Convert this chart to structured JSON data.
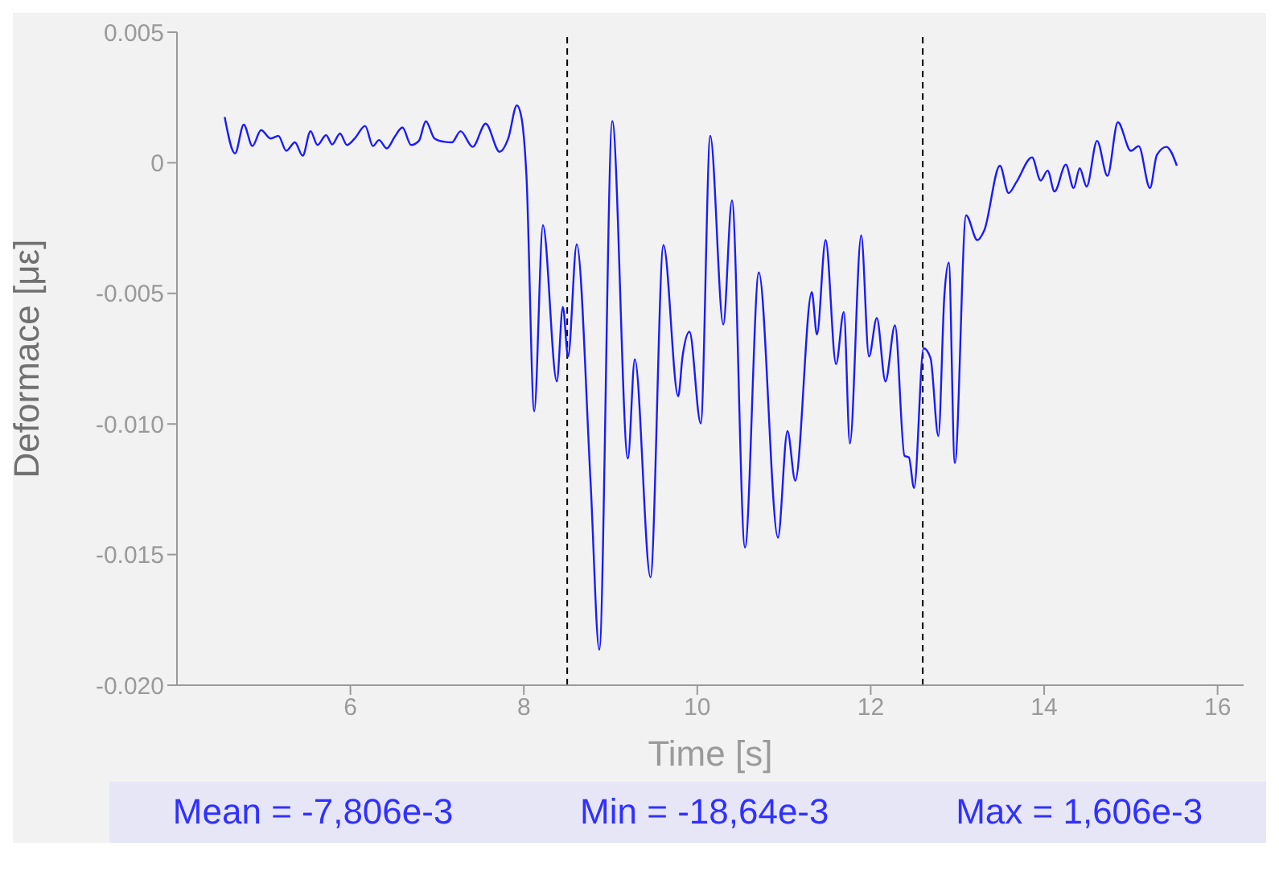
{
  "chart_data": {
    "type": "line",
    "xlabel": "Time [s]",
    "ylabel": "Deformace [με]",
    "x": [
      4.55,
      4.67,
      4.77,
      4.87,
      4.97,
      5.08,
      5.17,
      5.26,
      5.36,
      5.45,
      5.54,
      5.62,
      5.72,
      5.79,
      5.88,
      5.96,
      6.05,
      6.17,
      6.26,
      6.33,
      6.42,
      6.51,
      6.6,
      6.7,
      6.79,
      6.87,
      6.97,
      7.09,
      7.17,
      7.27,
      7.41,
      7.56,
      7.72,
      7.82,
      7.92,
      7.97,
      8.03,
      8.12,
      8.22,
      8.38,
      8.45,
      8.51,
      8.61,
      8.77,
      8.87,
      9.02,
      9.2,
      9.28,
      9.46,
      9.61,
      9.78,
      9.83,
      9.91,
      10.04,
      10.15,
      10.3,
      10.4,
      10.55,
      10.71,
      10.93,
      11.04,
      11.13,
      11.32,
      11.38,
      11.48,
      11.6,
      11.69,
      11.76,
      11.89,
      11.98,
      12.07,
      12.17,
      12.28,
      12.39,
      12.44,
      12.5,
      12.61,
      12.69,
      12.78,
      12.85,
      12.9,
      12.97,
      13.1,
      13.23,
      13.31,
      13.49,
      13.59,
      13.68,
      13.86,
      13.96,
      14.04,
      14.12,
      14.25,
      14.34,
      14.41,
      14.49,
      14.61,
      14.73,
      14.85,
      15.0,
      15.09,
      15.22,
      15.3,
      15.41,
      15.53
    ],
    "values": [
      0.00175,
      0.00036,
      0.00146,
      0.00064,
      0.00125,
      0.00093,
      0.00103,
      0.00046,
      0.00078,
      0.00027,
      0.00121,
      0.00068,
      0.00106,
      0.0007,
      0.00112,
      0.00068,
      0.00093,
      0.00141,
      0.00064,
      0.00087,
      0.00055,
      0.00099,
      0.00135,
      0.00068,
      0.00084,
      0.00159,
      0.00093,
      0.0008,
      0.00078,
      0.00121,
      0.00061,
      0.0015,
      0.00042,
      0.00093,
      0.0022,
      0.00178,
      -0.0005,
      -0.00951,
      -0.00239,
      -0.00837,
      -0.00552,
      -0.00742,
      -0.00312,
      -0.01226,
      -0.01864,
      0.0016,
      -0.01132,
      -0.00752,
      -0.01587,
      -0.00315,
      -0.00894,
      -0.00742,
      -0.00647,
      -0.00998,
      0.00103,
      -0.00619,
      -0.00144,
      -0.01473,
      -0.0042,
      -0.01435,
      -0.01027,
      -0.01217,
      -0.00495,
      -0.00657,
      -0.00296,
      -0.00771,
      -0.00571,
      -0.01075,
      -0.00277,
      -0.00742,
      -0.00594,
      -0.00837,
      -0.00622,
      -0.01122,
      -0.01128,
      -0.01245,
      -0.0071,
      -0.00748,
      -0.01046,
      -0.00505,
      -0.00382,
      -0.0115,
      -0.00201,
      -0.00296,
      -0.00258,
      -0.00011,
      -0.00116,
      -0.00074,
      0.00021,
      -0.00068,
      -0.0003,
      -0.0011,
      -7e-05,
      -0.00097,
      -0.00021,
      -0.00091,
      0.00084,
      -0.0005,
      0.00155,
      0.00046,
      0.00064,
      -0.00097,
      0.0003,
      0.00061,
      -0.00011
    ],
    "color": "#1a1aff",
    "marker": "none",
    "line_style": "solid",
    "grid": false,
    "legend": false,
    "xlim": [
      4,
      16.3
    ],
    "xticks": [
      6,
      8,
      10,
      12,
      14,
      16
    ],
    "ylim": [
      -0.02,
      0.005
    ],
    "yticks": [
      {
        "value": -0.02,
        "label": "-0.020"
      },
      {
        "value": -0.015,
        "label": "-0.015"
      },
      {
        "value": -0.01,
        "label": "-0.010"
      },
      {
        "value": -0.005,
        "label": "-0.005"
      },
      0,
      {
        "value": 0.005,
        "label": "0.005"
      }
    ],
    "ref_lines": [
      {
        "axis": "x",
        "value": 8.5,
        "color": "#000000",
        "line_style": "dashed"
      },
      {
        "axis": "x",
        "value": 12.6,
        "color": "#000000",
        "line_style": "dashed"
      }
    ],
    "annotations": [
      "Mean = -7,806e-3",
      "Min = -18,64e-3",
      "Max = 1,606e-3"
    ]
  }
}
